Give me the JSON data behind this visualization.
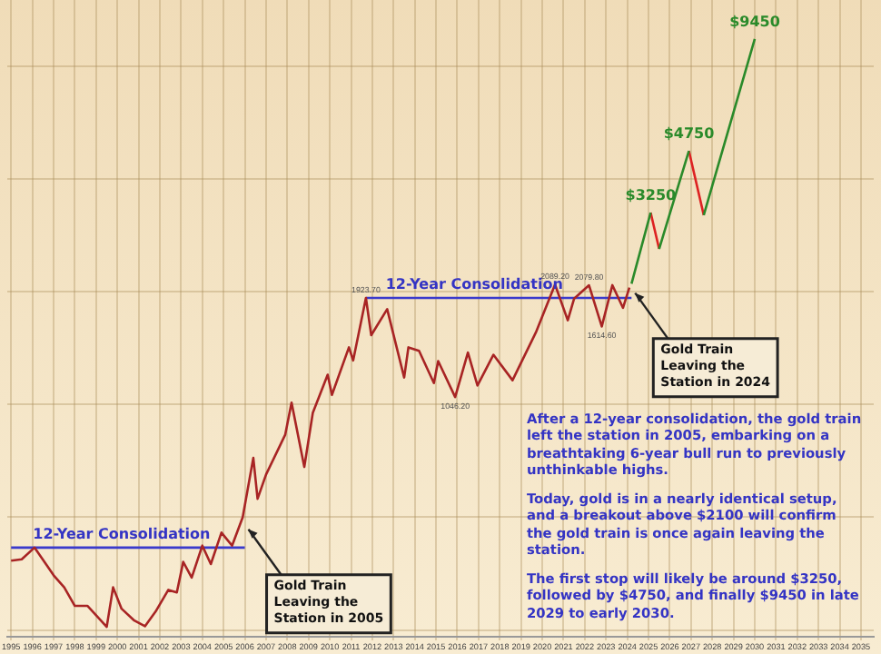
{
  "chart_data": {
    "type": "line",
    "log": "y",
    "grid": true,
    "tick_labels": "x",
    "marker": "none",
    "line_style": "solid",
    "xlim": [
      1994.8,
      2035.6
    ],
    "xticks": [
      1995,
      1996,
      1997,
      1998,
      1999,
      2000,
      2001,
      2002,
      2003,
      2004,
      2005,
      2006,
      2007,
      2008,
      2009,
      2010,
      2011,
      2012,
      2013,
      2014,
      2015,
      2016,
      2017,
      2018,
      2019,
      2020,
      2021,
      2022,
      2023,
      2024,
      2025,
      2026,
      2027,
      2028,
      2029,
      2030,
      2031,
      2032,
      2033,
      2034,
      2035
    ],
    "ylim": [
      240,
      12000
    ],
    "yticks": [
      {
        "value": 250,
        "label": null
      },
      {
        "value": 500,
        "label": null
      },
      {
        "value": 1000,
        "label": null
      },
      {
        "value": 2000,
        "label": null
      },
      {
        "value": 4000,
        "label": null
      },
      {
        "value": 8000,
        "label": null
      }
    ],
    "series": [
      {
        "type": "line",
        "color": "#a82424",
        "x": [
          1995.0,
          1995.5,
          1996.1,
          1996.5,
          1997.0,
          1997.5,
          1998.0,
          1998.6,
          1999.5,
          1999.8,
          2000.2,
          2000.8,
          2001.3,
          2001.8,
          2002.4,
          2002.8,
          2003.1,
          2003.5,
          2004.0,
          2004.4,
          2004.9,
          2005.4,
          2005.9,
          2006.4,
          2006.6,
          2007.0,
          2007.9,
          2008.2,
          2008.8,
          2009.2,
          2009.9,
          2010.1,
          2010.9,
          2011.1,
          2011.7,
          2011.95,
          2012.7,
          2013.5,
          2013.7,
          2014.2,
          2014.9,
          2015.1,
          2015.9,
          2016.5,
          2016.95,
          2017.7,
          2018.6,
          2019.7,
          2020.6,
          2021.2,
          2021.5,
          2022.2,
          2022.8,
          2023.3,
          2023.8,
          2024.1
        ],
        "values": [
          383,
          386,
          415,
          385,
          350,
          325,
          290,
          290,
          255,
          325,
          285,
          265,
          256,
          280,
          320,
          315,
          380,
          345,
          420,
          375,
          455,
          420,
          500,
          720,
          560,
          650,
          830,
          1011,
          681,
          950,
          1200,
          1060,
          1420,
          1310,
          1923.7,
          1530,
          1795,
          1180,
          1420,
          1390,
          1140,
          1305,
          1046.2,
          1375,
          1124,
          1357,
          1160,
          1557,
          2089.2,
          1677,
          1916,
          2079.8,
          1614.6,
          2081,
          1810,
          2050
        ],
        "value_labels": [
          null,
          null,
          null,
          null,
          null,
          null,
          null,
          null,
          null,
          null,
          null,
          null,
          null,
          null,
          null,
          null,
          null,
          null,
          null,
          null,
          null,
          null,
          null,
          null,
          null,
          null,
          null,
          null,
          null,
          null,
          null,
          null,
          null,
          null,
          "1923.70",
          null,
          null,
          null,
          null,
          null,
          null,
          null,
          "1046.20",
          null,
          null,
          null,
          null,
          null,
          "2089.20",
          null,
          null,
          "2079.80",
          "1614.60",
          null,
          null,
          null
        ]
      },
      {
        "type": "line",
        "color": "#3a3acc",
        "x": [
          1995.0,
          2006.0,
          2009.0,
          2011.7,
          2024.2
        ],
        "values": [
          415,
          415,
          null,
          1923.7,
          1923.7
        ]
      },
      {
        "type": "line",
        "color": "#2a8a2a",
        "x": [
          2024.2,
          2025.1,
          2025.3,
          2025.5,
          2026.9,
          2027.2,
          2027.6,
          2030.0
        ],
        "values": [
          2100,
          3250,
          null,
          2600,
          4750,
          null,
          3200,
          9450
        ],
        "value_labels": [
          null,
          "$3250",
          null,
          null,
          "$4750",
          null,
          null,
          "$9450"
        ]
      },
      {
        "type": "line",
        "color": "#dd2222",
        "x": [
          2025.1,
          2025.5,
          2026.0,
          2026.9,
          2027.6
        ],
        "values": [
          3250,
          2600,
          null,
          4750,
          3200
        ]
      }
    ],
    "annotations": [
      {
        "text": "12-Year Consolidation",
        "x": 2000.2,
        "y": 415
      },
      {
        "text": "12-Year Consolidation",
        "x": 2016.8,
        "y": 1923.7
      },
      {
        "text": "Gold Train Leaving the Station in 2005",
        "x": 2006.0,
        "y": 480
      },
      {
        "text": "Gold Train Leaving the Station in 2024",
        "x": 2024.2,
        "y": 2050
      },
      "After a 12-year consolidation, the gold train left the station in 2005, embarking on a breathtaking 6-year bull run to previously unthinkable highs.",
      "Today, gold is in a nearly identical setup, and a breakout above $2100 will confirm the gold train is once again leaving the station.",
      "The first stop will likely be around $3250, followed by $4750, and finally $9450 in late 2029 to early 2030."
    ]
  }
}
